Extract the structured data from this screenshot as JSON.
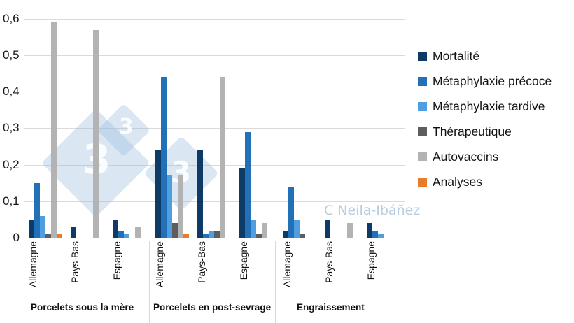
{
  "chart_data": {
    "type": "bar",
    "title": "",
    "xlabel": "",
    "ylabel": "",
    "ylim": [
      0,
      0.6
    ],
    "yticks": [
      "0",
      "0,1",
      "0,2",
      "0,3",
      "0,4",
      "0,5",
      "0,6"
    ],
    "grid": true,
    "legend_position": "right",
    "groups": [
      {
        "label": "Porcelets sous la mère",
        "categories": [
          "Allemagne",
          "Pays-Bas",
          "Espagne"
        ]
      },
      {
        "label": "Porcelets en post-sevrage",
        "categories": [
          "Allemagne",
          "Pays-Bas",
          "Espagne"
        ]
      },
      {
        "label": "Engraissement",
        "categories": [
          "Allemagne",
          "Pays-Bas",
          "Espagne"
        ]
      }
    ],
    "categories": [
      "Porcelets sous la mère / Allemagne",
      "Porcelets sous la mère / Pays-Bas",
      "Porcelets sous la mère / Espagne",
      "Porcelets en post-sevrage / Allemagne",
      "Porcelets en post-sevrage / Pays-Bas",
      "Porcelets en post-sevrage / Espagne",
      "Engraissement / Allemagne",
      "Engraissement / Pays-Bas",
      "Engraissement / Espagne"
    ],
    "series": [
      {
        "name": "Mortalité",
        "color": "#0e3a66",
        "values": [
          0.05,
          0.03,
          0.05,
          0.24,
          0.24,
          0.19,
          0.02,
          0.05,
          0.04
        ]
      },
      {
        "name": "Métaphylaxie précoce",
        "color": "#2270b8",
        "values": [
          0.15,
          0,
          0.02,
          0.44,
          0.01,
          0.29,
          0.14,
          0,
          0.02
        ]
      },
      {
        "name": "Métaphylaxie tardive",
        "color": "#4f9ee0",
        "values": [
          0.06,
          0,
          0.01,
          0.17,
          0.02,
          0.05,
          0.05,
          0,
          0.01
        ]
      },
      {
        "name": "Thérapeutique",
        "color": "#5e5e5e",
        "values": [
          0.01,
          0,
          0,
          0.04,
          0.02,
          0.01,
          0.01,
          0,
          0
        ]
      },
      {
        "name": "Autovaccins",
        "color": "#b3b3b3",
        "values": [
          0.59,
          0.57,
          0.03,
          0.17,
          0.44,
          0.04,
          0,
          0.04,
          0
        ]
      },
      {
        "name": "Analyses",
        "color": "#e97c2c",
        "values": [
          0.01,
          0,
          0,
          0.01,
          0,
          0,
          0,
          0,
          0
        ]
      }
    ],
    "annotations": [
      "C Neila-Ibáñez"
    ]
  },
  "watermark": {
    "credit": "C Neila-Ibáñez",
    "logo_glyph": "3"
  }
}
